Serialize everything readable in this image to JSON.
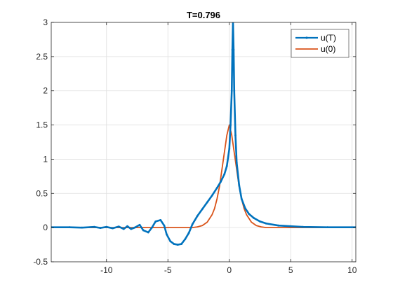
{
  "chart_data": {
    "type": "line",
    "title": "T=0.796",
    "xlabel": "",
    "ylabel": "",
    "xlim": [
      -14.5,
      10.3
    ],
    "ylim": [
      -0.5,
      3
    ],
    "xticks": [
      -10,
      -5,
      0,
      5,
      10
    ],
    "yticks": [
      -0.5,
      0,
      0.5,
      1,
      1.5,
      2,
      2.5,
      3
    ],
    "xtick_labels": [
      "-10",
      "-5",
      "0",
      "5",
      "10"
    ],
    "ytick_labels": [
      "-0.5",
      "0",
      "0.5",
      "1",
      "1.5",
      "2",
      "2.5",
      "3"
    ],
    "grid": true,
    "legend_position": "top-right",
    "series": [
      {
        "name": "u(T)",
        "color": "#0072BD",
        "marker": "dot",
        "x": [
          -14.5,
          -13,
          -12,
          -11,
          -10.5,
          -10,
          -9.5,
          -9,
          -8.6,
          -8.3,
          -8,
          -7.7,
          -7.3,
          -7,
          -6.6,
          -6.3,
          -6,
          -5.6,
          -5.3,
          -5.1,
          -4.8,
          -4.5,
          -4.2,
          -3.9,
          -3.6,
          -3.3,
          -3,
          -2.6,
          -2.2,
          -1.8,
          -1.4,
          -1.0,
          -0.7,
          -0.4,
          -0.2,
          0.0,
          0.1,
          0.2,
          0.25,
          0.3,
          0.35,
          0.4,
          0.5,
          0.6,
          0.8,
          1.0,
          1.3,
          1.6,
          2.0,
          2.5,
          3.0,
          4.0,
          5.0,
          6.0,
          8.0,
          10.3
        ],
        "y": [
          0.005,
          0.005,
          0.0,
          0.01,
          -0.005,
          0.01,
          -0.01,
          0.015,
          -0.02,
          0.02,
          -0.02,
          0.0,
          0.04,
          -0.04,
          -0.07,
          0.0,
          0.09,
          0.11,
          0.03,
          -0.1,
          -0.2,
          -0.24,
          -0.25,
          -0.24,
          -0.17,
          -0.08,
          0.05,
          0.17,
          0.27,
          0.37,
          0.47,
          0.58,
          0.67,
          0.78,
          0.9,
          1.15,
          1.5,
          2.0,
          2.6,
          3.0,
          2.6,
          2.0,
          1.35,
          0.95,
          0.62,
          0.42,
          0.28,
          0.2,
          0.14,
          0.09,
          0.06,
          0.03,
          0.02,
          0.01,
          0.005,
          0.005
        ]
      },
      {
        "name": "u(0)",
        "color": "#D95319",
        "marker": "none",
        "x": [
          -14.5,
          -4.0,
          -3.0,
          -2.6,
          -2.2,
          -1.8,
          -1.4,
          -1.2,
          -1.0,
          -0.8,
          -0.6,
          -0.4,
          -0.2,
          0.0,
          0.2,
          0.4,
          0.6,
          0.8,
          1.0,
          1.2,
          1.4,
          1.8,
          2.2,
          2.6,
          3.0,
          4.0,
          10.3
        ],
        "y": [
          0.0,
          0.0,
          0.0,
          0.01,
          0.03,
          0.08,
          0.19,
          0.28,
          0.42,
          0.6,
          0.85,
          1.1,
          1.35,
          1.5,
          1.35,
          1.1,
          0.85,
          0.6,
          0.42,
          0.28,
          0.19,
          0.08,
          0.03,
          0.01,
          0.0,
          0.0,
          0.0
        ]
      }
    ]
  }
}
